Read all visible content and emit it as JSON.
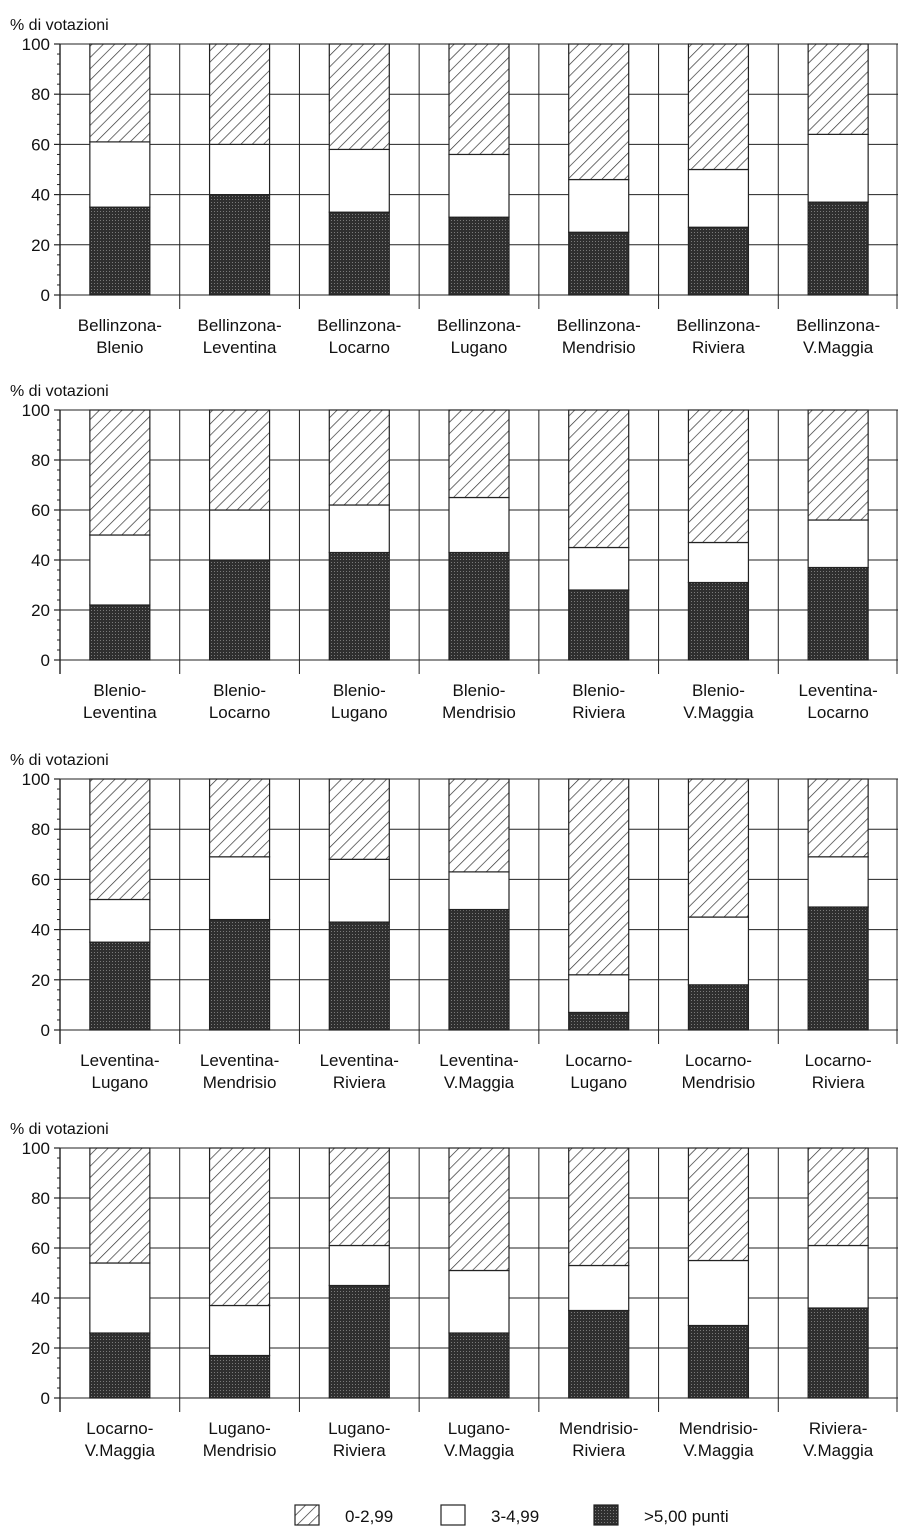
{
  "legend": {
    "items": [
      {
        "label": "0-2,99",
        "pattern": "hatch"
      },
      {
        "label": "3-4,99",
        "pattern": "white"
      },
      {
        "label": ">5,00 punti",
        "pattern": "dark"
      }
    ]
  },
  "chart_data": [
    {
      "type": "bar",
      "stacked": true,
      "ylabel": "% di votazioni",
      "ylim": [
        0,
        100
      ],
      "yticks": [
        0,
        20,
        40,
        60,
        80,
        100
      ],
      "grid": true,
      "categories": [
        [
          "Bellinzona-",
          "Blenio"
        ],
        [
          "Bellinzona-",
          "Leventina"
        ],
        [
          "Bellinzona-",
          "Locarno"
        ],
        [
          "Bellinzona-",
          "Lugano"
        ],
        [
          "Bellinzona-",
          "Mendrisio"
        ],
        [
          "Bellinzona-",
          "Riviera"
        ],
        [
          "Bellinzona-",
          "V.Maggia"
        ]
      ],
      "series": [
        {
          "name": ">5,00 punti",
          "values": [
            35,
            40,
            33,
            31,
            25,
            27,
            37
          ]
        },
        {
          "name": "3-4,99",
          "values": [
            26,
            20,
            25,
            25,
            21,
            23,
            27
          ]
        },
        {
          "name": "0-2,99",
          "values": [
            39,
            40,
            42,
            44,
            54,
            50,
            36
          ]
        }
      ]
    },
    {
      "type": "bar",
      "stacked": true,
      "ylabel": "% di votazioni",
      "ylim": [
        0,
        100
      ],
      "yticks": [
        0,
        20,
        40,
        60,
        80,
        100
      ],
      "grid": true,
      "categories": [
        [
          "Blenio-",
          "Leventina"
        ],
        [
          "Blenio-",
          "Locarno"
        ],
        [
          "Blenio-",
          "Lugano"
        ],
        [
          "Blenio-",
          "Mendrisio"
        ],
        [
          "Blenio-",
          "Riviera"
        ],
        [
          "Blenio-",
          "V.Maggia"
        ],
        [
          "Leventina-",
          "Locarno"
        ]
      ],
      "series": [
        {
          "name": ">5,00 punti",
          "values": [
            22,
            40,
            43,
            43,
            28,
            31,
            37
          ]
        },
        {
          "name": "3-4,99",
          "values": [
            28,
            20,
            19,
            22,
            17,
            16,
            19
          ]
        },
        {
          "name": "0-2,99",
          "values": [
            50,
            40,
            38,
            35,
            55,
            53,
            44
          ]
        }
      ]
    },
    {
      "type": "bar",
      "stacked": true,
      "ylabel": "% di votazioni",
      "ylim": [
        0,
        100
      ],
      "yticks": [
        0,
        20,
        40,
        60,
        80,
        100
      ],
      "grid": true,
      "categories": [
        [
          "Leventina-",
          "Lugano"
        ],
        [
          "Leventina-",
          "Mendrisio"
        ],
        [
          "Leventina-",
          "Riviera"
        ],
        [
          "Leventina-",
          "V.Maggia"
        ],
        [
          "Locarno-",
          "Lugano"
        ],
        [
          "Locarno-",
          "Mendrisio"
        ],
        [
          "Locarno-",
          "Riviera"
        ]
      ],
      "series": [
        {
          "name": ">5,00 punti",
          "values": [
            35,
            44,
            43,
            48,
            7,
            18,
            49
          ]
        },
        {
          "name": "3-4,99",
          "values": [
            17,
            25,
            25,
            15,
            15,
            27,
            20
          ]
        },
        {
          "name": "0-2,99",
          "values": [
            48,
            31,
            32,
            37,
            78,
            55,
            31
          ]
        }
      ]
    },
    {
      "type": "bar",
      "stacked": true,
      "ylabel": "% di votazioni",
      "ylim": [
        0,
        100
      ],
      "yticks": [
        0,
        20,
        40,
        60,
        80,
        100
      ],
      "grid": true,
      "categories": [
        [
          "Locarno-",
          "V.Maggia"
        ],
        [
          "Lugano-",
          "Mendrisio"
        ],
        [
          "Lugano-",
          "Riviera"
        ],
        [
          "Lugano-",
          "V.Maggia"
        ],
        [
          "Mendrisio-",
          "Riviera"
        ],
        [
          "Mendrisio-",
          "V.Maggia"
        ],
        [
          "Riviera-",
          "V.Maggia"
        ]
      ],
      "series": [
        {
          "name": ">5,00 punti",
          "values": [
            26,
            17,
            45,
            26,
            35,
            29,
            36
          ]
        },
        {
          "name": "3-4,99",
          "values": [
            28,
            20,
            16,
            25,
            18,
            26,
            25
          ]
        },
        {
          "name": "0-2,99",
          "values": [
            46,
            63,
            39,
            49,
            47,
            45,
            39
          ]
        }
      ]
    }
  ]
}
